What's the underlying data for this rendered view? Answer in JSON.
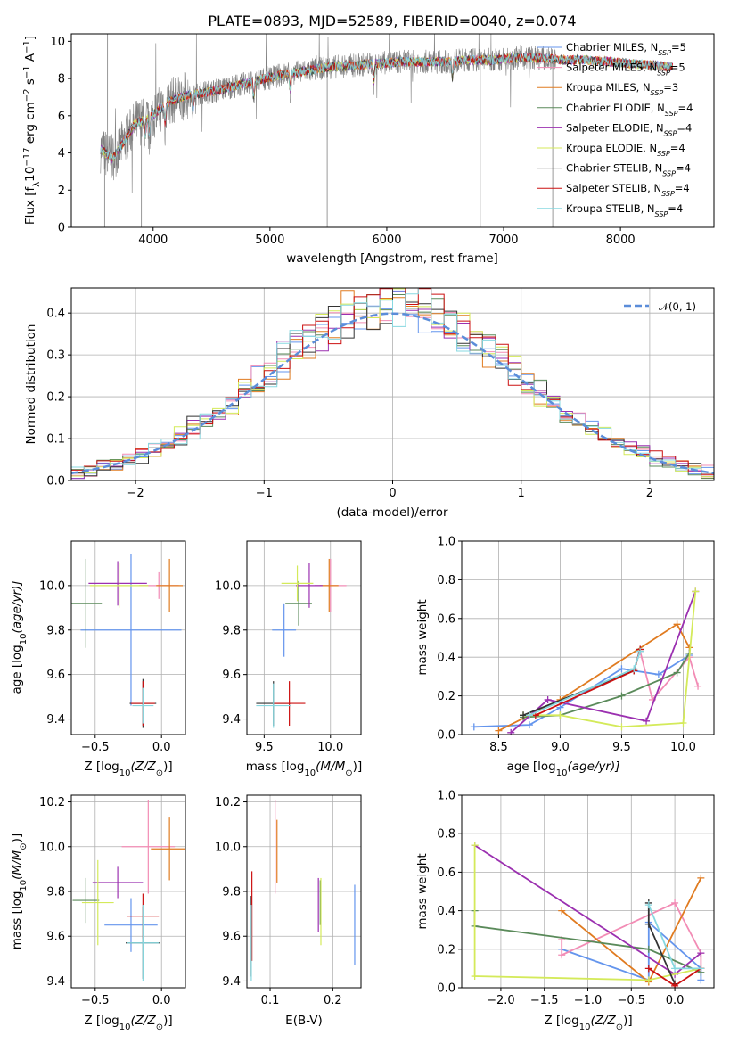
{
  "title": "PLATE=0893, MJD=52589, FIBERID=0040, z=0.074",
  "colors": {
    "Chabrier MILES": "#6495ed",
    "Salpeter MILES": "#f28cb5",
    "Kroupa MILES": "#e07b20",
    "Chabrier ELODIE": "#5a8a5a",
    "Salpeter ELODIE": "#9b30b0",
    "Kroupa ELODIE": "#d4ea5a",
    "Chabrier STELIB": "#333333",
    "Salpeter STELIB": "#cc1111",
    "Kroupa STELIB": "#87d8e0",
    "data": "#808080"
  },
  "chart_data": [
    {
      "id": "spectrum",
      "type": "line",
      "xlabel": "wavelength [Angstrom, rest frame]",
      "ylabel_parts": [
        "Flux [f",
        "λ",
        "10",
        "−17",
        " erg cm",
        "−2",
        " s",
        "−1",
        " A",
        "−1",
        "]"
      ],
      "xlim": [
        3300,
        8800
      ],
      "ylim": [
        0,
        10.4
      ],
      "xticks": [
        4000,
        5000,
        6000,
        7000,
        8000
      ],
      "yticks": [
        0,
        2,
        4,
        6,
        8,
        10
      ],
      "grid": false,
      "legend_position": "lower-right",
      "legend": [
        {
          "name": "Chabrier MILES",
          "n": "5"
        },
        {
          "name": "Salpeter MILES",
          "n": "5"
        },
        {
          "name": "Kroupa MILES",
          "n": "3"
        },
        {
          "name": "Chabrier ELODIE",
          "n": "4"
        },
        {
          "name": "Salpeter ELODIE",
          "n": "4"
        },
        {
          "name": "Kroupa ELODIE",
          "n": "4"
        },
        {
          "name": "Chabrier STELIB",
          "n": "4"
        },
        {
          "name": "Salpeter STELIB",
          "n": "4"
        },
        {
          "name": "Kroupa STELIB",
          "n": "4"
        }
      ],
      "legend_suffix": {
        "prefix": ", N",
        "sub": "SSP",
        "eq": "="
      },
      "continuum": {
        "wavelength": [
          3550,
          3650,
          3750,
          3850,
          3950,
          4050,
          4150,
          4300,
          4500,
          4700,
          4900,
          5100,
          5300,
          5500,
          5700,
          5900,
          6100,
          6300,
          6500,
          6700,
          6900,
          7100,
          7300,
          7500,
          7700,
          7900,
          8100,
          8300,
          8450
        ],
        "flux": [
          4.2,
          3.7,
          4.6,
          5.6,
          5.8,
          6.3,
          6.8,
          7.1,
          7.3,
          7.6,
          7.9,
          8.2,
          8.4,
          8.6,
          8.7,
          8.8,
          8.9,
          8.9,
          8.9,
          9.0,
          9.0,
          9.1,
          9.1,
          9.0,
          9.0,
          8.9,
          8.8,
          8.7,
          8.6
        ]
      },
      "data_range": [
        3550,
        7450
      ],
      "model_range": [
        3550,
        8450
      ]
    },
    {
      "id": "residuals",
      "type": "histogram",
      "xlabel": "(data-model)/error",
      "ylabel": "Normed distribution",
      "xlim": [
        -2.5,
        2.5
      ],
      "ylim": [
        0,
        0.46
      ],
      "xticks": [
        -2,
        -1,
        0,
        1,
        2
      ],
      "xticklabels": [
        "−2",
        "−1",
        "0",
        "1",
        "2"
      ],
      "yticks": [
        0.0,
        0.1,
        0.2,
        0.3,
        0.4
      ],
      "yticklabels": [
        "0.0",
        "0.1",
        "0.2",
        "0.3",
        "0.4"
      ],
      "grid": true,
      "bin_width": 0.1,
      "reference_curve_label": "𝒩(0, 1)",
      "legend_position": "top-right"
    },
    {
      "id": "age-vs-Z",
      "type": "errorbar",
      "xlabel_parts": [
        "Z [log",
        "10",
        "(Z/Z",
        "⊙",
        ")]"
      ],
      "ylabel_parts": [
        "age  [log",
        "10",
        "(age/yr)]"
      ],
      "xlim": [
        -0.68,
        0.18
      ],
      "ylim": [
        9.33,
        10.2
      ],
      "xticks": [
        -0.5,
        0.0
      ],
      "xticklabels": [
        "−0.5",
        "0.0"
      ],
      "yticks": [
        9.4,
        9.6,
        9.8,
        10.0
      ],
      "yticklabels": [
        "9.4",
        "9.6",
        "9.8",
        "10.0"
      ],
      "grid": true,
      "points": [
        {
          "model": "Chabrier MILES",
          "x": -0.23,
          "xerr": 0.38,
          "y": 9.8,
          "yerr": 0.34
        },
        {
          "model": "Salpeter MILES",
          "x": -0.02,
          "xerr": 0.15,
          "y": 10.0,
          "yerr": 0.06
        },
        {
          "model": "Kroupa MILES",
          "x": 0.06,
          "xerr": 0.1,
          "y": 10.0,
          "yerr": 0.12
        },
        {
          "model": "Chabrier ELODIE",
          "x": -0.57,
          "xerr": 0.12,
          "y": 9.92,
          "yerr": 0.2
        },
        {
          "model": "Salpeter ELODIE",
          "x": -0.33,
          "xerr": 0.22,
          "y": 10.01,
          "yerr": 0.1
        },
        {
          "model": "Kroupa ELODIE",
          "x": -0.32,
          "xerr": 0.22,
          "y": 10.0,
          "yerr": 0.1
        },
        {
          "model": "Chabrier STELIB",
          "x": -0.14,
          "xerr": 0.1,
          "y": 9.47,
          "yerr": 0.11
        },
        {
          "model": "Salpeter STELIB",
          "x": -0.14,
          "xerr": 0.09,
          "y": 9.47,
          "yerr": 0.1
        },
        {
          "model": "Kroupa STELIB",
          "x": -0.14,
          "xerr": 0.08,
          "y": 9.46,
          "yerr": 0.08
        }
      ]
    },
    {
      "id": "age-vs-mass",
      "type": "errorbar",
      "xlabel_parts": [
        "mass [log",
        "10",
        "(M/M",
        "⊙",
        ")]"
      ],
      "ylabel_parts": [],
      "xlim": [
        9.37,
        10.23
      ],
      "ylim": [
        9.33,
        10.2
      ],
      "xticks": [
        9.5,
        10.0
      ],
      "xticklabels": [
        "9.5",
        "10.0"
      ],
      "yticks": [
        9.4,
        9.6,
        9.8,
        10.0
      ],
      "yticklabels": [
        "9.4",
        "9.6",
        "9.8",
        "10.0"
      ],
      "grid": true,
      "points": [
        {
          "model": "Chabrier MILES",
          "x": 9.65,
          "xerr": 0.09,
          "y": 9.8,
          "yerr": 0.12
        },
        {
          "model": "Salpeter MILES",
          "x": 10.0,
          "xerr": 0.12,
          "y": 10.0,
          "yerr": 0.12
        },
        {
          "model": "Kroupa MILES",
          "x": 9.99,
          "xerr": 0.07,
          "y": 10.0,
          "yerr": 0.12
        },
        {
          "model": "Chabrier ELODIE",
          "x": 9.76,
          "xerr": 0.1,
          "y": 9.92,
          "yerr": 0.1
        },
        {
          "model": "Salpeter ELODIE",
          "x": 9.84,
          "xerr": 0.1,
          "y": 10.0,
          "yerr": 0.1
        },
        {
          "model": "Kroupa ELODIE",
          "x": 9.75,
          "xerr": 0.12,
          "y": 10.01,
          "yerr": 0.08
        },
        {
          "model": "Chabrier STELIB",
          "x": 9.57,
          "xerr": 0.13,
          "y": 9.47,
          "yerr": 0.1
        },
        {
          "model": "Salpeter STELIB",
          "x": 9.69,
          "xerr": 0.12,
          "y": 9.47,
          "yerr": 0.1
        },
        {
          "model": "Kroupa STELIB",
          "x": 9.57,
          "xerr": 0.13,
          "y": 9.46,
          "yerr": 0.1
        }
      ]
    },
    {
      "id": "massweight-vs-age",
      "type": "line",
      "xlabel_parts": [
        "age  [log",
        "10",
        "(age/yr)]"
      ],
      "ylabel": "mass weight",
      "xlim": [
        8.2,
        10.25
      ],
      "ylim": [
        0,
        1.0
      ],
      "xticks": [
        8.5,
        9.0,
        9.5,
        10.0
      ],
      "xticklabels": [
        "8.5",
        "9.0",
        "9.5",
        "10.0"
      ],
      "yticks": [
        0.0,
        0.2,
        0.4,
        0.6,
        0.8,
        1.0
      ],
      "yticklabels": [
        "0.0",
        "0.2",
        "0.4",
        "0.6",
        "0.8",
        "1.0"
      ],
      "grid": true,
      "series": [
        {
          "model": "Chabrier MILES",
          "x": [
            8.3,
            8.75,
            9.0,
            9.5,
            9.8,
            10.05
          ],
          "y": [
            0.04,
            0.05,
            0.14,
            0.34,
            0.31,
            0.41
          ]
        },
        {
          "model": "Salpeter MILES",
          "x": [
            9.65,
            9.75,
            10.05,
            10.12
          ],
          "y": [
            0.43,
            0.18,
            0.4,
            0.25
          ]
        },
        {
          "model": "Kroupa MILES",
          "x": [
            8.5,
            9.0,
            9.95,
            10.05
          ],
          "y": [
            0.02,
            0.18,
            0.57,
            0.45
          ]
        },
        {
          "model": "Chabrier ELODIE",
          "x": [
            8.7,
            9.0,
            9.5,
            9.95,
            10.05
          ],
          "y": [
            0.09,
            0.1,
            0.2,
            0.32,
            0.42
          ]
        },
        {
          "model": "Salpeter ELODIE",
          "x": [
            8.6,
            8.9,
            9.7,
            10.1
          ],
          "y": [
            0.01,
            0.18,
            0.07,
            0.74
          ]
        },
        {
          "model": "Kroupa ELODIE",
          "x": [
            8.7,
            9.0,
            9.5,
            10.0,
            10.1
          ],
          "y": [
            0.1,
            0.1,
            0.04,
            0.06,
            0.74
          ]
        },
        {
          "model": "Chabrier STELIB",
          "x": [
            8.7,
            9.6,
            9.65
          ],
          "y": [
            0.1,
            0.33,
            0.44
          ]
        },
        {
          "model": "Salpeter STELIB",
          "x": [
            8.8,
            9.6,
            9.65
          ],
          "y": [
            0.1,
            0.33,
            0.44
          ]
        },
        {
          "model": "Kroupa STELIB",
          "x": [
            8.75,
            9.6,
            9.65
          ],
          "y": [
            0.1,
            0.34,
            0.43
          ]
        }
      ]
    },
    {
      "id": "mass-vs-Z",
      "type": "errorbar",
      "xlabel_parts": [
        "Z [log",
        "10",
        "(Z/Z",
        "⊙",
        ")]"
      ],
      "ylabel_parts": [
        "mass [log",
        "10",
        "(M/M",
        "⊙",
        ")]"
      ],
      "xlim": [
        -0.68,
        0.18
      ],
      "ylim": [
        9.37,
        10.23
      ],
      "xticks": [
        -0.5,
        0.0
      ],
      "xticklabels": [
        "−0.5",
        "0.0"
      ],
      "yticks": [
        9.4,
        9.6,
        9.8,
        10.0,
        10.2
      ],
      "yticklabels": [
        "9.4",
        "9.6",
        "9.8",
        "10.0",
        "10.2"
      ],
      "grid": true,
      "points": [
        {
          "model": "Chabrier MILES",
          "x": -0.23,
          "xerr": 0.2,
          "y": 9.65,
          "yerr": 0.12
        },
        {
          "model": "Salpeter MILES",
          "x": -0.1,
          "xerr": 0.2,
          "y": 10.0,
          "yerr": 0.21
        },
        {
          "model": "Kroupa MILES",
          "x": 0.06,
          "xerr": 0.14,
          "y": 9.99,
          "yerr": 0.14
        },
        {
          "model": "Chabrier ELODIE",
          "x": -0.57,
          "xerr": 0.1,
          "y": 9.76,
          "yerr": 0.1
        },
        {
          "model": "Salpeter ELODIE",
          "x": -0.33,
          "xerr": 0.19,
          "y": 9.84,
          "yerr": 0.07
        },
        {
          "model": "Kroupa ELODIE",
          "x": -0.48,
          "xerr": 0.12,
          "y": 9.75,
          "yerr": 0.19
        },
        {
          "model": "Chabrier STELIB",
          "x": -0.14,
          "xerr": 0.13,
          "y": 9.57,
          "yerr": 0.16
        },
        {
          "model": "Salpeter STELIB",
          "x": -0.14,
          "xerr": 0.12,
          "y": 9.69,
          "yerr": 0.1
        },
        {
          "model": "Kroupa STELIB",
          "x": -0.14,
          "xerr": 0.12,
          "y": 9.57,
          "yerr": 0.17
        }
      ]
    },
    {
      "id": "mass-vs-ebv",
      "type": "errorbar",
      "xlabel": "E(B-V)",
      "ylabel_parts": [],
      "xlim": [
        0.063,
        0.245
      ],
      "ylim": [
        9.37,
        10.23
      ],
      "xticks": [
        0.1,
        0.2
      ],
      "xticklabels": [
        "0.1",
        "0.2"
      ],
      "yticks": [
        9.4,
        9.6,
        9.8,
        10.0,
        10.2
      ],
      "yticklabels": [
        "9.4",
        "9.6",
        "9.8",
        "10.0",
        "10.2"
      ],
      "grid": true,
      "points": [
        {
          "model": "Chabrier MILES",
          "x": 0.235,
          "y": 9.65,
          "yerr": 0.18
        },
        {
          "model": "Salpeter MILES",
          "x": 0.108,
          "y": 10.0,
          "yerr": 0.21
        },
        {
          "model": "Kroupa MILES",
          "x": 0.111,
          "y": 9.98,
          "yerr": 0.14
        },
        {
          "model": "Chabrier ELODIE",
          "x": 0.18,
          "y": 9.75,
          "yerr": 0.1
        },
        {
          "model": "Salpeter ELODIE",
          "x": 0.177,
          "y": 9.74,
          "yerr": 0.12
        },
        {
          "model": "Kroupa ELODIE",
          "x": 0.181,
          "y": 9.71,
          "yerr": 0.15
        },
        {
          "model": "Chabrier STELIB",
          "x": 0.07,
          "y": 9.6,
          "yerr": 0.18
        },
        {
          "model": "Salpeter STELIB",
          "x": 0.071,
          "y": 9.69,
          "yerr": 0.2
        },
        {
          "model": "Kroupa STELIB",
          "x": 0.07,
          "y": 9.57,
          "yerr": 0.17
        }
      ]
    },
    {
      "id": "massweight-vs-Z",
      "type": "line",
      "xlabel_parts": [
        "Z [log",
        "10",
        "(Z/Z",
        "⊙",
        ")]"
      ],
      "ylabel": "mass weight",
      "xlim": [
        -2.45,
        0.45
      ],
      "ylim": [
        0,
        1.0
      ],
      "xticks": [
        -2.0,
        -1.5,
        -1.0,
        -0.5,
        0.0
      ],
      "xticklabels": [
        "−2.0",
        "−1.5",
        "−1.0",
        "−0.5",
        "0.0"
      ],
      "yticks": [
        0.0,
        0.2,
        0.4,
        0.6,
        0.8,
        1.0
      ],
      "yticklabels": [
        "0.0",
        "0.2",
        "0.4",
        "0.6",
        "0.8",
        "1.0"
      ],
      "grid": true,
      "series": [
        {
          "model": "Chabrier MILES",
          "x": [
            -1.3,
            -0.3,
            -0.3,
            0.3,
            0.3
          ],
          "y": [
            0.2,
            0.04,
            0.34,
            0.1,
            0.04
          ]
        },
        {
          "model": "Salpeter MILES",
          "x": [
            -1.3,
            -1.3,
            0.0,
            0.3,
            0.3
          ],
          "y": [
            0.25,
            0.17,
            0.44,
            0.18,
            0.1
          ]
        },
        {
          "model": "Kroupa MILES",
          "x": [
            -1.3,
            -0.3,
            0.3
          ],
          "y": [
            0.4,
            0.03,
            0.57
          ]
        },
        {
          "model": "Chabrier ELODIE",
          "x": [
            -2.3,
            -2.3,
            -0.3,
            0.3
          ],
          "y": [
            0.4,
            0.32,
            0.2,
            0.08
          ]
        },
        {
          "model": "Salpeter ELODIE",
          "x": [
            -2.3,
            0.0,
            0.3
          ],
          "y": [
            0.74,
            0.07,
            0.18
          ]
        },
        {
          "model": "Kroupa ELODIE",
          "x": [
            -2.3,
            -2.3,
            -0.3,
            0.3
          ],
          "y": [
            0.74,
            0.06,
            0.04,
            0.1
          ]
        },
        {
          "model": "Chabrier STELIB",
          "x": [
            -0.3,
            -0.3,
            0.0
          ],
          "y": [
            0.44,
            0.33,
            0.02
          ]
        },
        {
          "model": "Salpeter STELIB",
          "x": [
            -0.3,
            0.0,
            0.3
          ],
          "y": [
            0.1,
            0.01,
            0.1
          ]
        },
        {
          "model": "Kroupa STELIB",
          "x": [
            -0.3,
            0.0,
            0.3
          ],
          "y": [
            0.43,
            0.1,
            0.1
          ]
        }
      ]
    }
  ]
}
